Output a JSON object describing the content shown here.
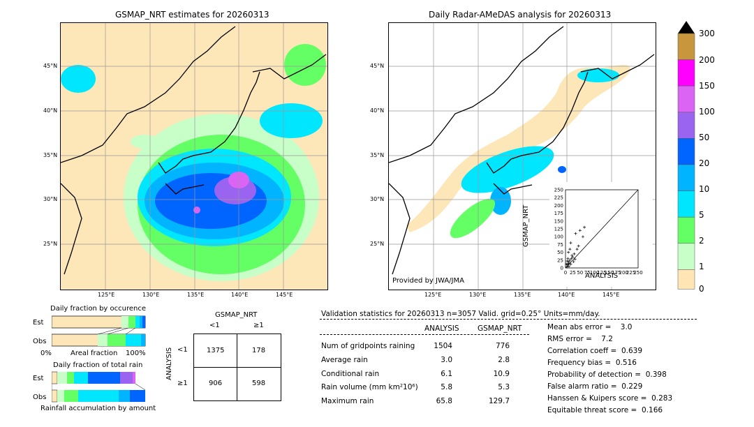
{
  "left_map": {
    "title": "GSMAP_NRT estimates for 20260313",
    "lat_labels": [
      "45°N",
      "40°N",
      "35°N",
      "30°N",
      "25°N"
    ],
    "lon_labels": [
      "125°E",
      "130°E",
      "135°E",
      "140°E",
      "145°E"
    ]
  },
  "right_map": {
    "title": "Daily Radar-AMeDAS analysis for 20260313",
    "lat_labels": [
      "45°N",
      "40°N",
      "35°N",
      "30°N",
      "25°N"
    ],
    "lon_labels": [
      "125°E",
      "130°E",
      "135°E",
      "140°E",
      "145°E"
    ],
    "credit": "Provided by JWA/JMA"
  },
  "scatter": {
    "xlabel": "ANALYSIS",
    "ylabel": "GSMAP_NRT",
    "ticks": [
      "0",
      "25",
      "50",
      "75",
      "100",
      "125",
      "150",
      "175",
      "200",
      "225",
      "250"
    ],
    "xticks": [
      "0",
      "25",
      "50",
      "75",
      "100",
      "125",
      "150",
      "175",
      "200",
      "225",
      "250"
    ]
  },
  "colorbar": {
    "labels": [
      "300",
      "200",
      "150",
      "100",
      "50",
      "20",
      "10",
      "5",
      "2",
      "1",
      "0"
    ],
    "colors": [
      "#c8963c",
      "#ff00ff",
      "#dc64f5",
      "#9a64f0",
      "#0064ff",
      "#00b4ff",
      "#00e6ff",
      "#64ff64",
      "#c8ffc8",
      "#ffe6b4"
    ]
  },
  "occurrence": {
    "title": "Daily fraction by occurence",
    "rows": [
      "Est",
      "Obs"
    ],
    "xaxis": [
      "0%",
      "Areal fraction",
      "100%"
    ]
  },
  "total_rain": {
    "title": "Daily fraction of total rain",
    "rows": [
      "Est",
      "Obs"
    ],
    "xlabel": "Rainfall accumulation by amount"
  },
  "contingency": {
    "title": "GSMAP_NRT",
    "cols": [
      "<1",
      "≥1"
    ],
    "rows": [
      "<1",
      "≥1"
    ],
    "ylabel": "ANALYSIS",
    "cells": [
      [
        "1375",
        "178"
      ],
      [
        "906",
        "598"
      ]
    ]
  },
  "validation": {
    "header": "Validation statistics for 20260313  n=3057 Valid. grid=0.25° Units=mm/day.",
    "col_analysis": "ANALYSIS",
    "col_gsmap": "GSMAP_NRT",
    "rows": [
      {
        "label": "Num of gridpoints raining",
        "a": "1504",
        "g": "776"
      },
      {
        "label": "Average rain",
        "a": "3.0",
        "g": "2.8"
      },
      {
        "label": "Conditional rain",
        "a": "6.1",
        "g": "10.9"
      },
      {
        "label": "Rain volume (mm km²10⁶)",
        "a": "5.8",
        "g": "5.3"
      },
      {
        "label": "Maximum rain",
        "a": "65.8",
        "g": "129.7"
      }
    ],
    "scores": [
      "Mean abs error =    3.0",
      "RMS error =    7.2",
      "Correlation coeff =  0.639",
      "Frequency bias =  0.516",
      "Probability of detection =  0.398",
      "False alarm ratio =  0.229",
      "Hanssen & Kuipers score =  0.283",
      "Equitable threat score =  0.166"
    ]
  },
  "chart_data": {
    "type": "scatter",
    "title": "",
    "xlabel": "ANALYSIS",
    "ylabel": "GSMAP_NRT",
    "xlim": [
      0,
      250
    ],
    "ylim": [
      0,
      250
    ],
    "points": [
      [
        5,
        3
      ],
      [
        8,
        10
      ],
      [
        10,
        15
      ],
      [
        12,
        20
      ],
      [
        15,
        25
      ],
      [
        20,
        30
      ],
      [
        22,
        40
      ],
      [
        25,
        35
      ],
      [
        30,
        45
      ],
      [
        40,
        60
      ],
      [
        45,
        70
      ],
      [
        35,
        110
      ],
      [
        50,
        120
      ],
      [
        60,
        100
      ],
      [
        65,
        130
      ],
      [
        10,
        50
      ],
      [
        15,
        60
      ],
      [
        18,
        80
      ],
      [
        28,
        20
      ],
      [
        33,
        28
      ],
      [
        8,
        30
      ],
      [
        12,
        5
      ],
      [
        3,
        12
      ],
      [
        6,
        22
      ],
      [
        18,
        12
      ]
    ]
  }
}
